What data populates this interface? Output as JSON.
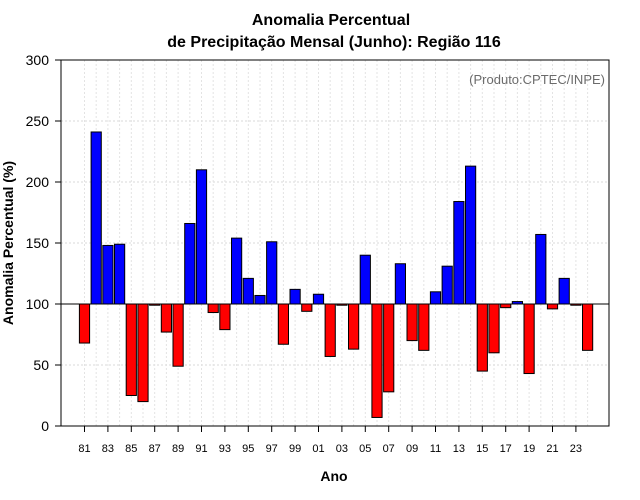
{
  "chart_data": {
    "type": "bar",
    "title_line1": "Anomalia Percentual",
    "title_line2": "de Precipitação Mensal (Junho): Região 116",
    "xlabel": "Ano",
    "ylabel": "Anomalia Percentual (%)",
    "source_note": "(Produto:CPTEC/INPE)",
    "baseline": 100,
    "ylim": [
      0,
      300
    ],
    "yticks": [
      0,
      50,
      100,
      150,
      200,
      250,
      300
    ],
    "above_color": "#0000ff",
    "below_color": "#ff0000",
    "categories": [
      "81",
      "82",
      "83",
      "84",
      "85",
      "86",
      "87",
      "88",
      "89",
      "90",
      "91",
      "92",
      "93",
      "94",
      "95",
      "96",
      "97",
      "98",
      "99",
      "00",
      "01",
      "02",
      "03",
      "04",
      "05",
      "06",
      "07",
      "08",
      "09",
      "10",
      "11",
      "12",
      "13",
      "14",
      "15",
      "16",
      "17",
      "18",
      "19",
      "20",
      "21",
      "22",
      "23",
      "24"
    ],
    "values": [
      68,
      241,
      148,
      149,
      25,
      20,
      99,
      77,
      49,
      166,
      210,
      93,
      79,
      154,
      121,
      107,
      151,
      67,
      112,
      94,
      108,
      57,
      99,
      63,
      140,
      7,
      28,
      133,
      70,
      62,
      110,
      131,
      184,
      213,
      45,
      60,
      97,
      102,
      43,
      157,
      96,
      121,
      99,
      62
    ],
    "x_tick_labels": [
      "81",
      "83",
      "85",
      "87",
      "89",
      "91",
      "93",
      "95",
      "97",
      "99",
      "01",
      "03",
      "05",
      "07",
      "09",
      "11",
      "13",
      "15",
      "17",
      "19",
      "21",
      "23"
    ],
    "grid": true
  }
}
